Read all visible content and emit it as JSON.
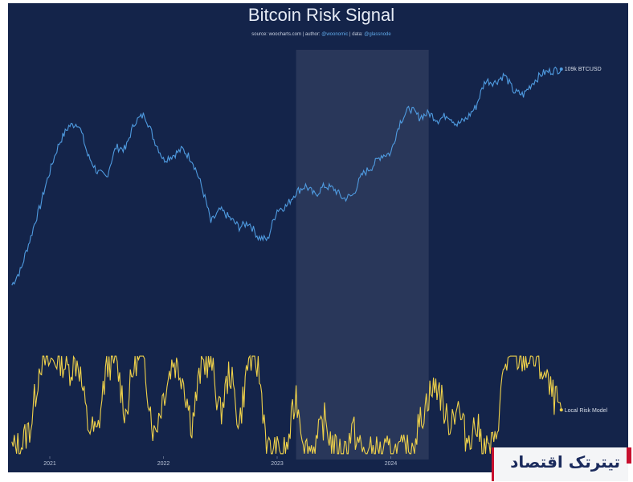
{
  "chart_data": {
    "type": "line",
    "title": "Bitcoin Risk Signal",
    "subtitle": {
      "source_label": "source:",
      "source": "woocharts.com",
      "author_label": "| author:",
      "author": "@woonomic",
      "data_label": "| data:",
      "data": "@glassnode"
    },
    "x_ticks": [
      "2021",
      "2022",
      "2023",
      "2024"
    ],
    "highlight_range": [
      "2023-03",
      "2024-05"
    ],
    "series": [
      {
        "name": "109k BTCUSD",
        "color": "#4f9be0",
        "points": [
          [
            "2020-09",
            10
          ],
          [
            "2020-10",
            12
          ],
          [
            "2020-11",
            17
          ],
          [
            "2020-12",
            24
          ],
          [
            "2021-01",
            35
          ],
          [
            "2021-02",
            48
          ],
          [
            "2021-03",
            58
          ],
          [
            "2021-04",
            60
          ],
          [
            "2021-05",
            42
          ],
          [
            "2021-06",
            35
          ],
          [
            "2021-07",
            33
          ],
          [
            "2021-08",
            46
          ],
          [
            "2021-09",
            45
          ],
          [
            "2021-10",
            61
          ],
          [
            "2021-11",
            66
          ],
          [
            "2021-12",
            50
          ],
          [
            "2022-01",
            40
          ],
          [
            "2022-02",
            42
          ],
          [
            "2022-03",
            45
          ],
          [
            "2022-04",
            40
          ],
          [
            "2022-05",
            30
          ],
          [
            "2022-06",
            20
          ],
          [
            "2022-07",
            23
          ],
          [
            "2022-08",
            21
          ],
          [
            "2022-09",
            19
          ],
          [
            "2022-10",
            20
          ],
          [
            "2022-11",
            17
          ],
          [
            "2022-12",
            16.5
          ],
          [
            "2023-01",
            23
          ],
          [
            "2023-02",
            24
          ],
          [
            "2023-03",
            28
          ],
          [
            "2023-04",
            30
          ],
          [
            "2023-05",
            27
          ],
          [
            "2023-06",
            30
          ],
          [
            "2023-07",
            29
          ],
          [
            "2023-08",
            26
          ],
          [
            "2023-09",
            27
          ],
          [
            "2023-10",
            34
          ],
          [
            "2023-11",
            37
          ],
          [
            "2023-12",
            42
          ],
          [
            "2024-01",
            43
          ],
          [
            "2024-02",
            61
          ],
          [
            "2024-03",
            71
          ],
          [
            "2024-04",
            64
          ],
          [
            "2024-05",
            67
          ],
          [
            "2024-06",
            62
          ],
          [
            "2024-07",
            66
          ],
          [
            "2024-08",
            59
          ],
          [
            "2024-09",
            63
          ],
          [
            "2024-10",
            72
          ],
          [
            "2024-11",
            96
          ],
          [
            "2024-12",
            94
          ],
          [
            "2025-01",
            102
          ],
          [
            "2025-02",
            85
          ],
          [
            "2025-03",
            82
          ],
          [
            "2025-04",
            94
          ],
          [
            "2025-05",
            104
          ],
          [
            "2025-06",
            107
          ],
          [
            "2025-07",
            109
          ]
        ]
      },
      {
        "name": "Local Risk Model",
        "color": "#f0d24a",
        "points": [
          [
            "2020-09",
            0.05
          ],
          [
            "2020-10",
            0.1
          ],
          [
            "2020-11",
            0.3
          ],
          [
            "2020-12",
            0.95
          ],
          [
            "2021-01",
            0.92
          ],
          [
            "2021-02",
            0.98
          ],
          [
            "2021-03",
            0.85
          ],
          [
            "2021-04",
            0.95
          ],
          [
            "2021-05",
            0.3
          ],
          [
            "2021-06",
            0.2
          ],
          [
            "2021-07",
            0.9
          ],
          [
            "2021-08",
            0.95
          ],
          [
            "2021-09",
            0.4
          ],
          [
            "2021-10",
            0.97
          ],
          [
            "2021-11",
            0.9
          ],
          [
            "2021-12",
            0.2
          ],
          [
            "2022-01",
            0.6
          ],
          [
            "2022-02",
            0.95
          ],
          [
            "2022-03",
            0.8
          ],
          [
            "2022-04",
            0.3
          ],
          [
            "2022-05",
            0.9
          ],
          [
            "2022-06",
            0.95
          ],
          [
            "2022-07",
            0.4
          ],
          [
            "2022-08",
            0.85
          ],
          [
            "2022-09",
            0.3
          ],
          [
            "2022-10",
            0.97
          ],
          [
            "2022-11",
            0.9
          ],
          [
            "2022-12",
            0.05
          ],
          [
            "2023-01",
            0.02
          ],
          [
            "2023-02",
            0.03
          ],
          [
            "2023-03",
            0.6
          ],
          [
            "2023-04",
            0.05
          ],
          [
            "2023-05",
            0.08
          ],
          [
            "2023-06",
            0.35
          ],
          [
            "2023-07",
            0.05
          ],
          [
            "2023-08",
            0.02
          ],
          [
            "2023-09",
            0.25
          ],
          [
            "2023-10",
            0.03
          ],
          [
            "2023-11",
            0.02
          ],
          [
            "2023-12",
            0.03
          ],
          [
            "2024-01",
            0.02
          ],
          [
            "2024-02",
            0.03
          ],
          [
            "2024-03",
            0.04
          ],
          [
            "2024-04",
            0.3
          ],
          [
            "2024-05",
            0.6
          ],
          [
            "2024-06",
            0.7
          ],
          [
            "2024-07",
            0.3
          ],
          [
            "2024-08",
            0.5
          ],
          [
            "2024-09",
            0.15
          ],
          [
            "2024-10",
            0.3
          ],
          [
            "2024-11",
            0.05
          ],
          [
            "2024-12",
            0.1
          ],
          [
            "2025-01",
            0.9
          ],
          [
            "2025-02",
            0.95
          ],
          [
            "2025-03",
            0.97
          ],
          [
            "2025-04",
            0.97
          ],
          [
            "2025-05",
            0.85
          ],
          [
            "2025-06",
            0.6
          ],
          [
            "2025-07",
            0.45
          ]
        ]
      }
    ],
    "grid": false,
    "legend": "end-of-line labels"
  },
  "watermark": {
    "text": "تیترتک اقتصاد"
  }
}
